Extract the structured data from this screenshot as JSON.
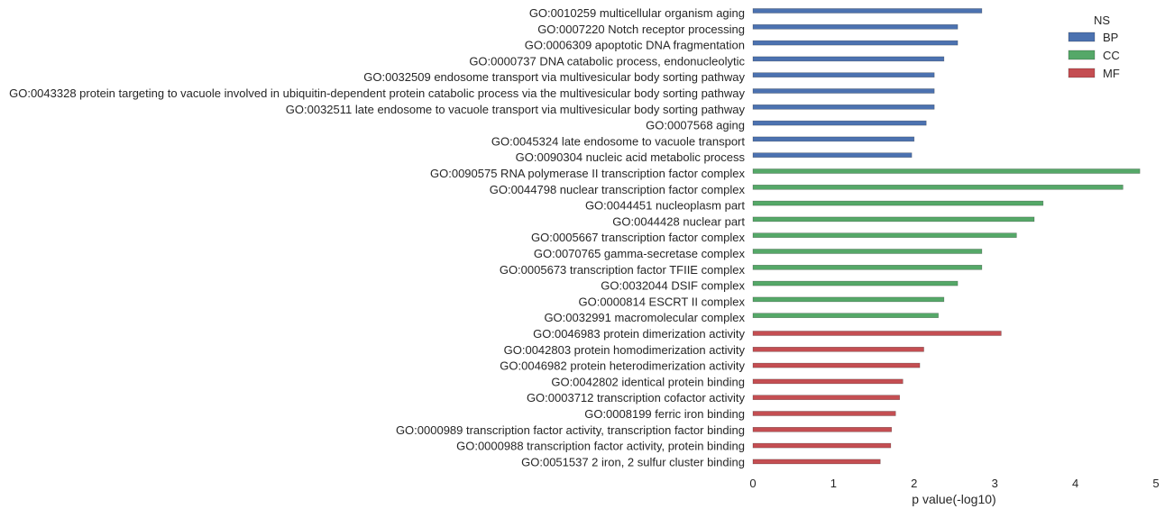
{
  "chart_data": {
    "type": "bar",
    "orientation": "horizontal",
    "xlabel": "p value(-log10)",
    "ylabel": "",
    "xlim": [
      0,
      5
    ],
    "xticks": [
      0,
      1,
      2,
      3,
      4,
      5
    ],
    "grid": false,
    "legend": {
      "title": "NS",
      "placement": "top-right",
      "entries": [
        {
          "name": "BP",
          "color": "#4c72b0"
        },
        {
          "name": "CC",
          "color": "#55a868"
        },
        {
          "name": "MF",
          "color": "#c44e52"
        }
      ]
    },
    "bars": [
      {
        "label": "GO:0010259 multicellular organism aging",
        "ns": "BP",
        "value": 2.84
      },
      {
        "label": "GO:0007220 Notch receptor processing",
        "ns": "BP",
        "value": 2.54
      },
      {
        "label": "GO:0006309 apoptotic DNA fragmentation",
        "ns": "BP",
        "value": 2.54
      },
      {
        "label": "GO:0000737 DNA catabolic process, endonucleolytic",
        "ns": "BP",
        "value": 2.37
      },
      {
        "label": "GO:0032509 endosome transport via multivesicular body sorting pathway",
        "ns": "BP",
        "value": 2.25
      },
      {
        "label": "GO:0043328 protein targeting to vacuole involved in ubiquitin-dependent protein catabolic process via the multivesicular body sorting pathway",
        "ns": "BP",
        "value": 2.25
      },
      {
        "label": "GO:0032511 late endosome to vacuole transport via multivesicular body sorting pathway",
        "ns": "BP",
        "value": 2.25
      },
      {
        "label": "GO:0007568 aging",
        "ns": "BP",
        "value": 2.15
      },
      {
        "label": "GO:0045324 late endosome to vacuole transport",
        "ns": "BP",
        "value": 2.0
      },
      {
        "label": "GO:0090304 nucleic acid metabolic process",
        "ns": "BP",
        "value": 1.97
      },
      {
        "label": "GO:0090575 RNA polymerase II transcription factor complex",
        "ns": "CC",
        "value": 4.8
      },
      {
        "label": "GO:0044798 nuclear transcription factor complex",
        "ns": "CC",
        "value": 4.59
      },
      {
        "label": "GO:0044451 nucleoplasm part",
        "ns": "CC",
        "value": 3.6
      },
      {
        "label": "GO:0044428 nuclear part",
        "ns": "CC",
        "value": 3.49
      },
      {
        "label": "GO:0005667 transcription factor complex",
        "ns": "CC",
        "value": 3.27
      },
      {
        "label": "GO:0070765 gamma-secretase complex",
        "ns": "CC",
        "value": 2.84
      },
      {
        "label": "GO:0005673 transcription factor TFIIE complex",
        "ns": "CC",
        "value": 2.84
      },
      {
        "label": "GO:0032044 DSIF complex",
        "ns": "CC",
        "value": 2.54
      },
      {
        "label": "GO:0000814 ESCRT II complex",
        "ns": "CC",
        "value": 2.37
      },
      {
        "label": "GO:0032991 macromolecular complex",
        "ns": "CC",
        "value": 2.3
      },
      {
        "label": "GO:0046983 protein dimerization activity",
        "ns": "MF",
        "value": 3.08
      },
      {
        "label": "GO:0042803 protein homodimerization activity",
        "ns": "MF",
        "value": 2.12
      },
      {
        "label": "GO:0046982 protein heterodimerization activity",
        "ns": "MF",
        "value": 2.07
      },
      {
        "label": "GO:0042802 identical protein binding",
        "ns": "MF",
        "value": 1.86
      },
      {
        "label": "GO:0003712 transcription cofactor activity",
        "ns": "MF",
        "value": 1.82
      },
      {
        "label": "GO:0008199 ferric iron binding",
        "ns": "MF",
        "value": 1.77
      },
      {
        "label": "GO:0000989 transcription factor activity, transcription factor binding",
        "ns": "MF",
        "value": 1.72
      },
      {
        "label": "GO:0000988 transcription factor activity, protein binding",
        "ns": "MF",
        "value": 1.71
      },
      {
        "label": "GO:0051537 2 iron, 2 sulfur cluster binding",
        "ns": "MF",
        "value": 1.58
      }
    ]
  }
}
